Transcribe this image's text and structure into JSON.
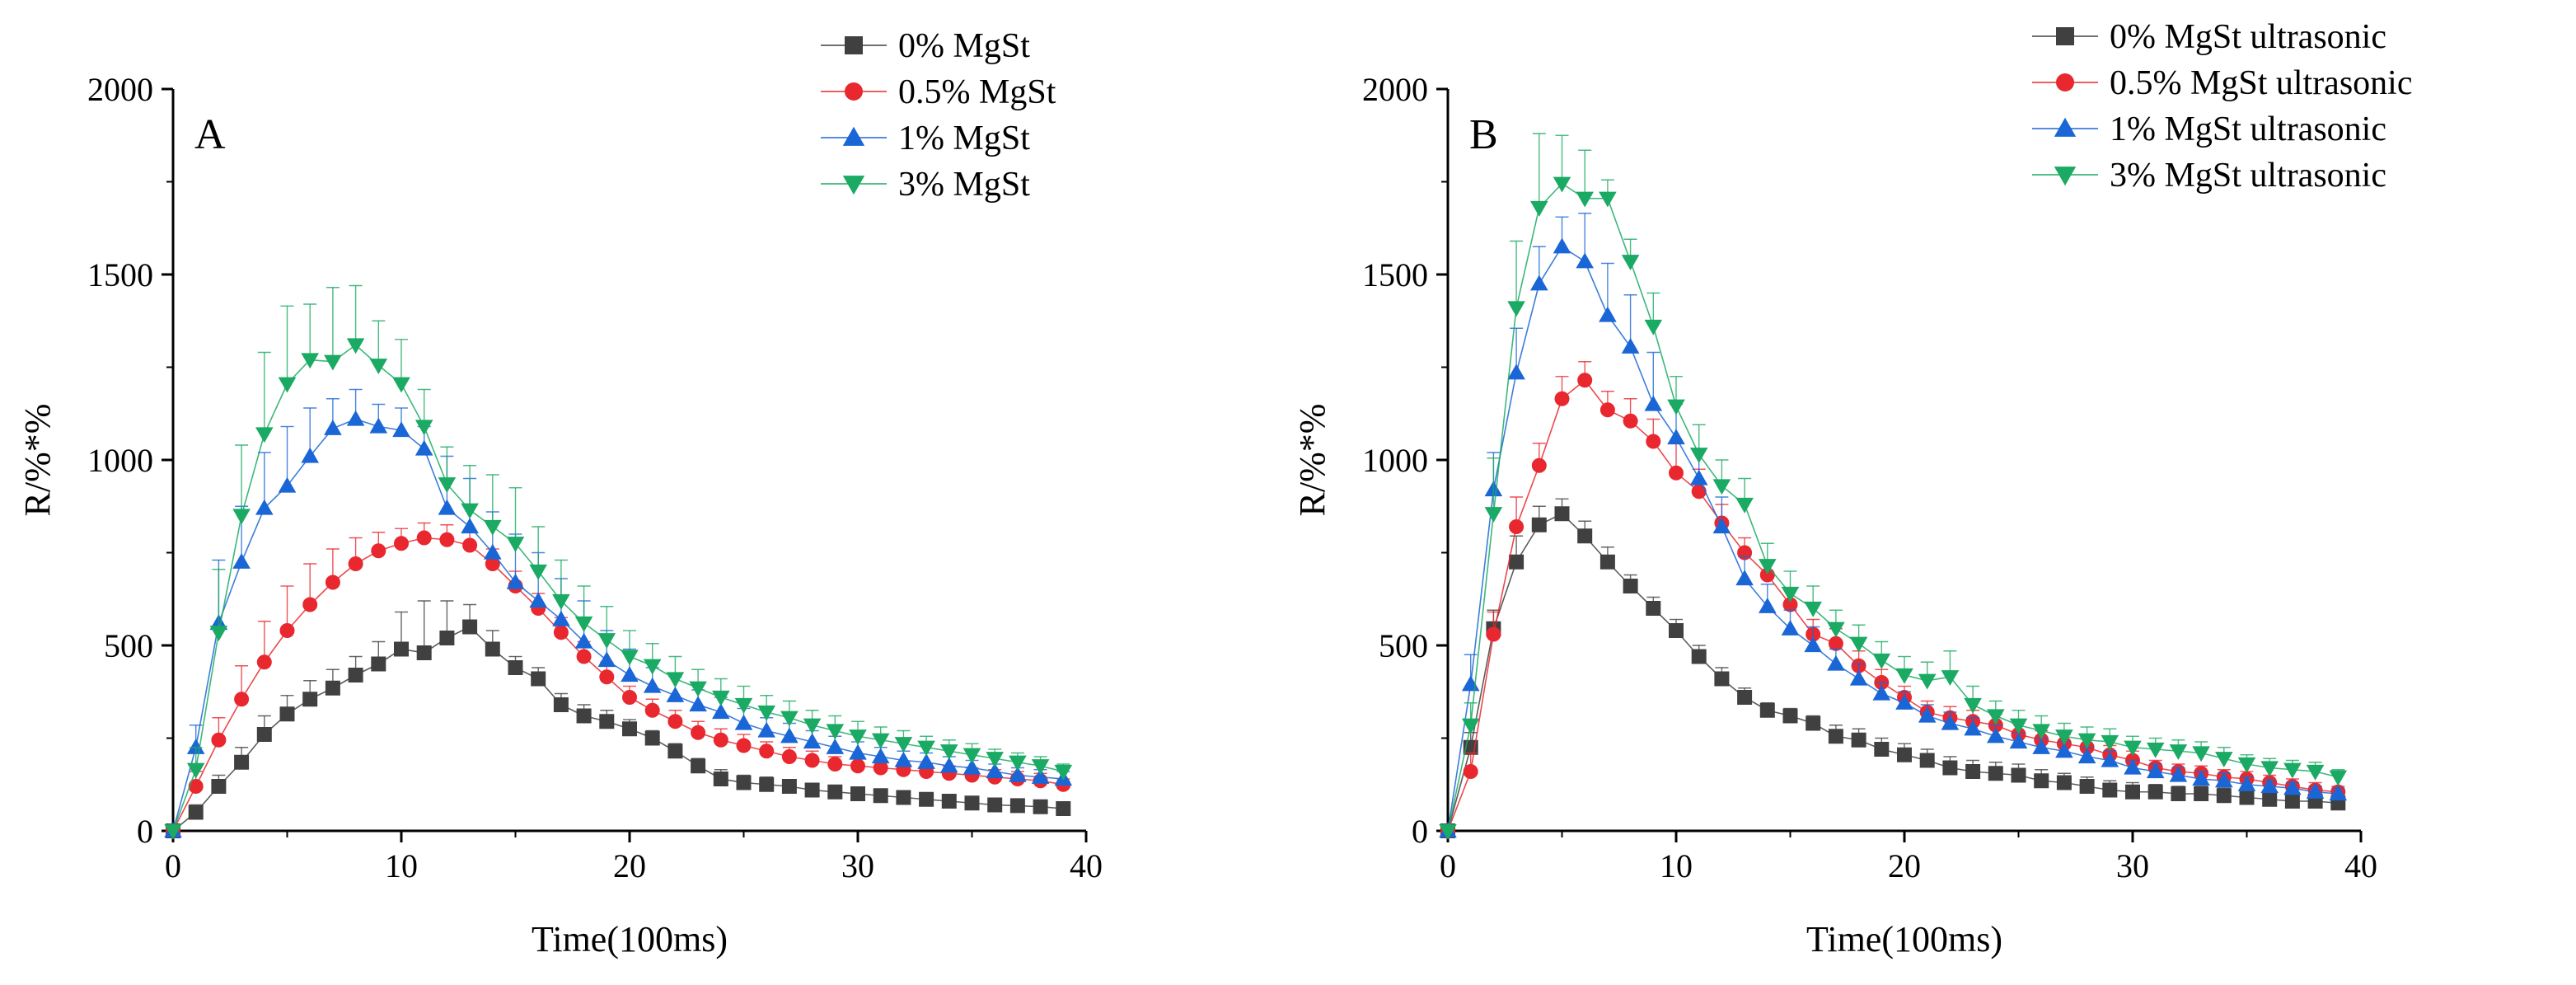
{
  "chart_data": [
    {
      "type": "line",
      "panel": "A",
      "xlabel": "Time(100ms)",
      "ylabel": "R/%*%",
      "xlim": [
        0,
        40
      ],
      "ylim": [
        0,
        2000
      ],
      "xticks": [
        0,
        10,
        20,
        30,
        40
      ],
      "yticks": [
        0,
        500,
        1000,
        1500,
        2000
      ],
      "grid": false,
      "legend_position": "top-right",
      "x": [
        0,
        1,
        2,
        3,
        4,
        5,
        6,
        7,
        8,
        9,
        10,
        11,
        12,
        13,
        14,
        15,
        16,
        17,
        18,
        19,
        20,
        21,
        22,
        23,
        24,
        25,
        26,
        27,
        28,
        29,
        30,
        31,
        32,
        33,
        34,
        35,
        36,
        37,
        38,
        39
      ],
      "series": [
        {
          "name": "0% MgSt",
          "color": "#404040",
          "marker": "square",
          "values": [
            0,
            50,
            120,
            185,
            260,
            315,
            355,
            385,
            420,
            450,
            490,
            480,
            520,
            550,
            490,
            440,
            410,
            340,
            310,
            295,
            275,
            250,
            215,
            175,
            140,
            130,
            125,
            120,
            110,
            105,
            100,
            95,
            90,
            85,
            80,
            75,
            70,
            68,
            65,
            60
          ],
          "errors": [
            0,
            20,
            30,
            40,
            50,
            50,
            50,
            50,
            50,
            60,
            100,
            140,
            100,
            60,
            50,
            30,
            30,
            30,
            30,
            30,
            25,
            20,
            20,
            20,
            25,
            20,
            20,
            15,
            15,
            15,
            15,
            12,
            12,
            10,
            10,
            10,
            10,
            10,
            10,
            10
          ]
        },
        {
          "name": "0.5% MgSt",
          "color": "#e8282e",
          "marker": "circle",
          "values": [
            0,
            120,
            245,
            355,
            455,
            540,
            610,
            670,
            720,
            755,
            775,
            790,
            785,
            770,
            720,
            660,
            600,
            535,
            470,
            415,
            360,
            325,
            295,
            265,
            245,
            230,
            215,
            200,
            190,
            180,
            175,
            170,
            165,
            160,
            155,
            150,
            145,
            140,
            135,
            125
          ],
          "errors": [
            0,
            40,
            60,
            90,
            110,
            120,
            110,
            90,
            70,
            50,
            40,
            40,
            40,
            40,
            40,
            40,
            40,
            40,
            40,
            40,
            30,
            30,
            30,
            30,
            30,
            30,
            25,
            25,
            25,
            20,
            20,
            20,
            20,
            20,
            20,
            20,
            20,
            20,
            20,
            15
          ]
        },
        {
          "name": "1% MgSt",
          "color": "#1a66d6",
          "marker": "triangle-up",
          "values": [
            0,
            225,
            560,
            725,
            870,
            930,
            1010,
            1085,
            1110,
            1090,
            1080,
            1030,
            870,
            820,
            750,
            670,
            620,
            570,
            510,
            460,
            420,
            390,
            365,
            340,
            320,
            290,
            270,
            255,
            240,
            225,
            210,
            200,
            190,
            185,
            175,
            170,
            160,
            150,
            145,
            140
          ],
          "errors": [
            0,
            60,
            170,
            150,
            150,
            160,
            130,
            80,
            80,
            60,
            60,
            60,
            140,
            130,
            110,
            130,
            130,
            110,
            110,
            80,
            70,
            50,
            50,
            40,
            40,
            40,
            35,
            35,
            30,
            30,
            30,
            25,
            25,
            25,
            25,
            20,
            20,
            20,
            20,
            20
          ]
        },
        {
          "name": "3% MgSt",
          "color": "#1aaa63",
          "marker": "triangle-down",
          "values": [
            0,
            165,
            535,
            850,
            1070,
            1205,
            1270,
            1265,
            1310,
            1255,
            1205,
            1090,
            935,
            865,
            820,
            775,
            700,
            620,
            560,
            515,
            470,
            445,
            410,
            385,
            360,
            340,
            320,
            305,
            285,
            270,
            255,
            245,
            235,
            225,
            215,
            205,
            195,
            185,
            175,
            160
          ],
          "errors": [
            0,
            60,
            170,
            190,
            220,
            210,
            150,
            200,
            160,
            120,
            120,
            100,
            100,
            120,
            140,
            150,
            120,
            110,
            100,
            90,
            70,
            60,
            60,
            50,
            50,
            50,
            45,
            45,
            40,
            40,
            40,
            35,
            35,
            30,
            30,
            30,
            25,
            25,
            25,
            20
          ]
        }
      ]
    },
    {
      "type": "line",
      "panel": "B",
      "xlabel": "Time(100ms)",
      "ylabel": "R/%*%",
      "xlim": [
        0,
        40
      ],
      "ylim": [
        0,
        2000
      ],
      "xticks": [
        0,
        10,
        20,
        30,
        40
      ],
      "yticks": [
        0,
        500,
        1000,
        1500,
        2000
      ],
      "grid": false,
      "legend_position": "top-right",
      "x": [
        0,
        1,
        2,
        3,
        4,
        5,
        6,
        7,
        8,
        9,
        10,
        11,
        12,
        13,
        14,
        15,
        16,
        17,
        18,
        19,
        20,
        21,
        22,
        23,
        24,
        25,
        26,
        27,
        28,
        29,
        30,
        31,
        32,
        33,
        34,
        35,
        36,
        37,
        38,
        39
      ],
      "series": [
        {
          "name": "0% MgSt ultrasonic",
          "color": "#404040",
          "marker": "square",
          "values": [
            0,
            225,
            545,
            725,
            825,
            855,
            795,
            725,
            660,
            600,
            540,
            470,
            410,
            360,
            325,
            310,
            290,
            255,
            245,
            220,
            205,
            190,
            170,
            160,
            155,
            150,
            135,
            130,
            120,
            110,
            105,
            105,
            100,
            100,
            95,
            90,
            85,
            80,
            80,
            75
          ],
          "errors": [
            0,
            40,
            50,
            70,
            50,
            40,
            40,
            40,
            30,
            30,
            30,
            30,
            30,
            25,
            20,
            20,
            20,
            30,
            30,
            30,
            30,
            30,
            30,
            30,
            30,
            30,
            30,
            25,
            25,
            25,
            25,
            20,
            20,
            20,
            20,
            20,
            20,
            20,
            20,
            15
          ]
        },
        {
          "name": "0.5% MgSt ultrasonic",
          "color": "#e8282e",
          "marker": "circle",
          "values": [
            0,
            160,
            530,
            820,
            985,
            1165,
            1215,
            1135,
            1105,
            1050,
            965,
            915,
            830,
            750,
            690,
            610,
            530,
            505,
            445,
            400,
            360,
            320,
            305,
            295,
            285,
            260,
            245,
            235,
            225,
            205,
            190,
            170,
            160,
            155,
            145,
            140,
            130,
            120,
            110,
            105
          ],
          "errors": [
            0,
            50,
            60,
            80,
            60,
            60,
            50,
            50,
            60,
            60,
            80,
            60,
            50,
            40,
            40,
            40,
            40,
            40,
            40,
            35,
            30,
            30,
            30,
            30,
            30,
            30,
            25,
            25,
            25,
            25,
            25,
            20,
            20,
            20,
            20,
            20,
            20,
            20,
            20,
            15
          ]
        },
        {
          "name": "1% MgSt ultrasonic",
          "color": "#1a66d6",
          "marker": "triangle-up",
          "values": [
            0,
            395,
            920,
            1235,
            1475,
            1575,
            1535,
            1390,
            1305,
            1150,
            1060,
            950,
            820,
            680,
            605,
            545,
            500,
            450,
            410,
            370,
            345,
            310,
            290,
            275,
            255,
            240,
            225,
            215,
            200,
            190,
            170,
            160,
            150,
            140,
            135,
            125,
            120,
            115,
            105,
            100
          ],
          "errors": [
            0,
            80,
            100,
            120,
            100,
            80,
            130,
            140,
            140,
            140,
            90,
            80,
            80,
            60,
            60,
            50,
            50,
            40,
            40,
            30,
            30,
            30,
            30,
            30,
            30,
            25,
            25,
            25,
            25,
            25,
            20,
            20,
            20,
            20,
            20,
            20,
            15,
            15,
            15,
            15
          ]
        },
        {
          "name": "3% MgSt ultrasonic",
          "color": "#1aaa63",
          "marker": "triangle-down",
          "values": [
            0,
            285,
            855,
            1410,
            1680,
            1745,
            1705,
            1705,
            1535,
            1360,
            1145,
            1015,
            930,
            880,
            715,
            640,
            600,
            545,
            505,
            460,
            420,
            405,
            415,
            340,
            310,
            285,
            270,
            255,
            245,
            240,
            225,
            220,
            215,
            210,
            195,
            180,
            170,
            165,
            160,
            145
          ],
          "errors": [
            0,
            60,
            150,
            180,
            200,
            130,
            130,
            50,
            60,
            90,
            80,
            80,
            70,
            70,
            60,
            60,
            60,
            50,
            50,
            50,
            50,
            50,
            70,
            50,
            40,
            40,
            40,
            35,
            35,
            35,
            30,
            30,
            30,
            30,
            30,
            25,
            25,
            25,
            25,
            20
          ]
        }
      ]
    }
  ]
}
